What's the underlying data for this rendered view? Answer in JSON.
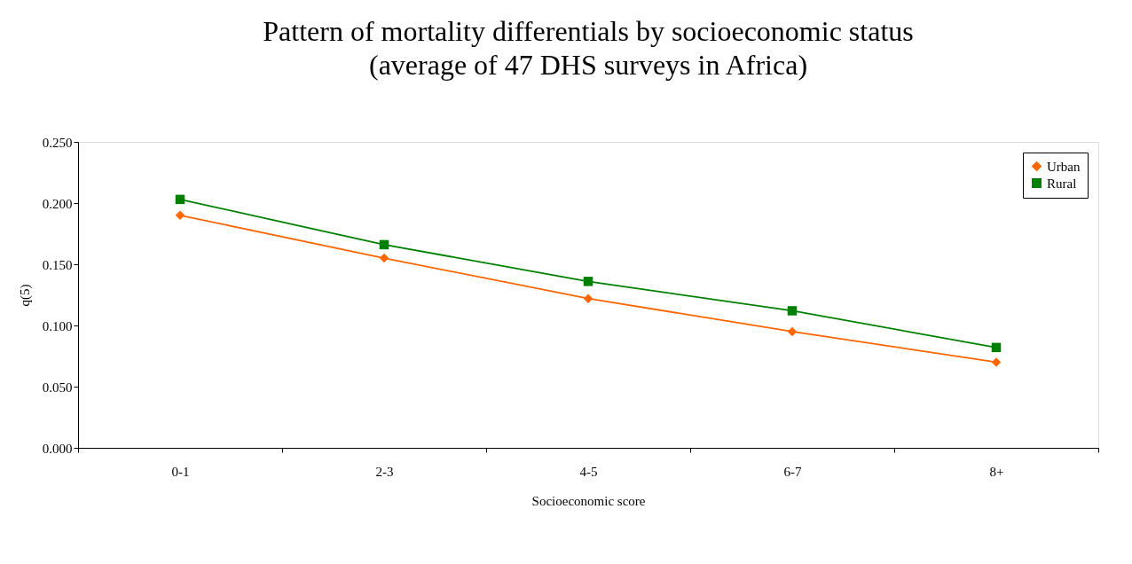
{
  "chart_data": {
    "type": "line",
    "title": "Pattern of mortality differentials by socioeconomic status",
    "subtitle": "(average of 47 DHS surveys in Africa)",
    "xlabel": "Socioeconomic score",
    "ylabel": "q(5)",
    "categories": [
      "0-1",
      "2-3",
      "4-5",
      "6-7",
      "8+"
    ],
    "series": [
      {
        "name": "Urban",
        "color": "#ff6600",
        "marker": "diamond",
        "values": [
          0.19,
          0.155,
          0.122,
          0.095,
          0.07
        ]
      },
      {
        "name": "Rural",
        "color": "#008000",
        "marker": "square",
        "values": [
          0.203,
          0.166,
          0.136,
          0.112,
          0.082
        ]
      }
    ],
    "ylim": [
      0,
      0.25
    ],
    "yticks": [
      {
        "value": 0,
        "label": "0.000"
      },
      {
        "value": 0.05,
        "label": "0.050"
      },
      {
        "value": 0.1,
        "label": "0.100"
      },
      {
        "value": 0.15,
        "label": "0.150"
      },
      {
        "value": 0.2,
        "label": "0.200"
      },
      {
        "value": 0.25,
        "label": "0.250"
      }
    ],
    "grid": false,
    "legend": "top right",
    "line_style": "solid"
  }
}
